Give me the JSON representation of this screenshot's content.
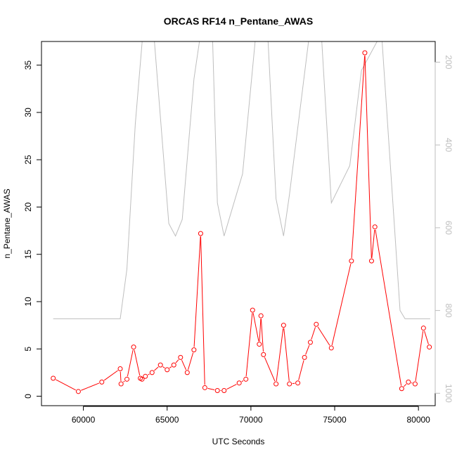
{
  "chart_data": {
    "type": "line",
    "title": "ORCAS RF14 n_Pentane_AWAS",
    "xlabel": "UTC Seconds",
    "ylabel": "n_Pentane_AWAS",
    "xlim": [
      57500,
      81000
    ],
    "ylim": [
      -1.0,
      37.5
    ],
    "y2lim": [
      1030,
      150
    ],
    "xticks": [
      60000,
      65000,
      70000,
      75000,
      80000
    ],
    "yticks": [
      0,
      5,
      10,
      15,
      20,
      25,
      30,
      35
    ],
    "y2ticks": [
      200,
      400,
      600,
      800,
      1000
    ],
    "colors": {
      "primary": "#ff0000",
      "secondary": "#bebebe",
      "axis": "#000000"
    },
    "series": [
      {
        "values": [
          [
            58200,
            1.9
          ],
          [
            59700,
            0.5
          ],
          [
            61100,
            1.5
          ],
          [
            62200,
            2.9
          ],
          [
            62250,
            1.3
          ],
          [
            62600,
            1.8
          ],
          [
            63000,
            5.2
          ],
          [
            63400,
            1.9
          ],
          [
            63500,
            1.8
          ],
          [
            63700,
            2.1
          ],
          [
            64100,
            2.5
          ],
          [
            64600,
            3.3
          ],
          [
            65000,
            2.8
          ],
          [
            65400,
            3.3
          ],
          [
            65800,
            4.1
          ],
          [
            66200,
            2.5
          ],
          [
            66600,
            4.9
          ],
          [
            67000,
            17.2
          ],
          [
            67250,
            0.9
          ],
          [
            68000,
            0.6
          ],
          [
            68400,
            0.6
          ],
          [
            69300,
            1.4
          ],
          [
            69700,
            1.8
          ],
          [
            70100,
            9.1
          ],
          [
            70500,
            5.5
          ],
          [
            70600,
            8.5
          ],
          [
            70750,
            4.4
          ],
          [
            71500,
            1.3
          ],
          [
            71950,
            7.5
          ],
          [
            72300,
            1.3
          ],
          [
            72800,
            1.4
          ],
          [
            73200,
            4.1
          ],
          [
            73550,
            5.7
          ],
          [
            73900,
            7.6
          ],
          [
            74800,
            5.1
          ],
          [
            76000,
            14.3
          ],
          [
            76800,
            36.3
          ],
          [
            77200,
            14.3
          ],
          [
            77400,
            17.9
          ],
          [
            79000,
            0.8
          ],
          [
            79400,
            1.5
          ],
          [
            79800,
            1.3
          ],
          [
            80300,
            7.2
          ],
          [
            80650,
            5.2
          ]
        ]
      },
      {
        "axis": "right",
        "values": [
          [
            58200,
            820
          ],
          [
            59500,
            820
          ],
          [
            61000,
            820
          ],
          [
            62200,
            820
          ],
          [
            62600,
            700
          ],
          [
            63100,
            350
          ],
          [
            63550,
            130
          ],
          [
            64200,
            130
          ],
          [
            65100,
            590
          ],
          [
            65500,
            620
          ],
          [
            65900,
            580
          ],
          [
            66600,
            240
          ],
          [
            67000,
            130
          ],
          [
            67700,
            130
          ],
          [
            68000,
            540
          ],
          [
            68400,
            620
          ],
          [
            69500,
            470
          ],
          [
            70300,
            130
          ],
          [
            71000,
            130
          ],
          [
            71500,
            530
          ],
          [
            71950,
            620
          ],
          [
            72300,
            520
          ],
          [
            73500,
            130
          ],
          [
            74200,
            130
          ],
          [
            74800,
            540
          ],
          [
            75900,
            450
          ],
          [
            76600,
            220
          ],
          [
            77800,
            130
          ],
          [
            78900,
            800
          ],
          [
            79200,
            820
          ],
          [
            80700,
            820
          ]
        ]
      }
    ]
  }
}
